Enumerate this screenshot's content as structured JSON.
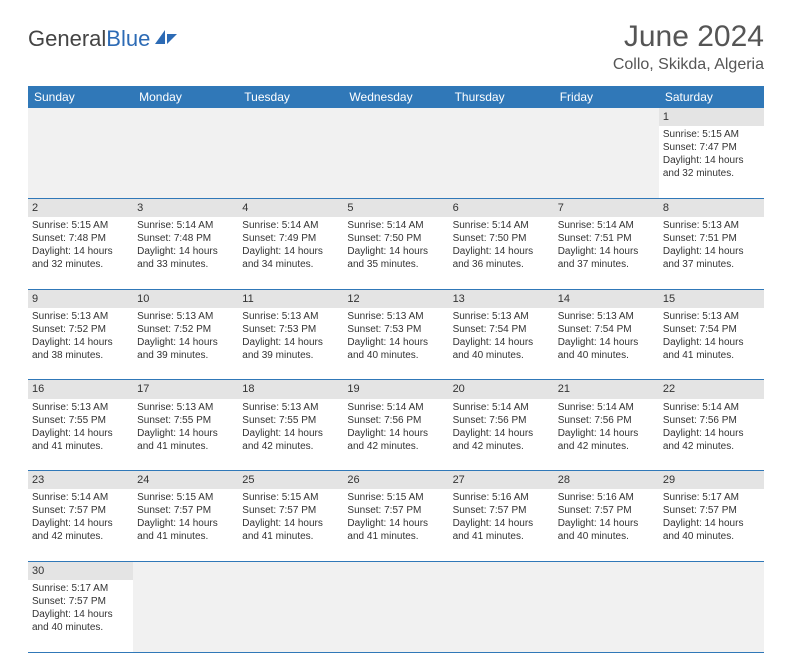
{
  "brand": {
    "part1": "General",
    "part2": "Blue"
  },
  "title": "June 2024",
  "location": "Collo, Skikda, Algeria",
  "dayHeaders": [
    "Sunday",
    "Monday",
    "Tuesday",
    "Wednesday",
    "Thursday",
    "Friday",
    "Saturday"
  ],
  "colors": {
    "header_bg": "#3078b8",
    "header_text": "#ffffff",
    "daynum_bg": "#e4e4e4",
    "empty_bg": "#f1f1f1",
    "divider": "#3078b8",
    "text": "#333333",
    "title_text": "#555555"
  },
  "layout": {
    "cols": 7,
    "rows": 6,
    "firstDayCol": 6,
    "daysInMonth": 30
  },
  "weeks": [
    [
      null,
      null,
      null,
      null,
      null,
      null,
      {
        "n": "1",
        "sr": "5:15 AM",
        "ss": "7:47 PM",
        "dl": "14 hours and 32 minutes."
      }
    ],
    [
      {
        "n": "2",
        "sr": "5:15 AM",
        "ss": "7:48 PM",
        "dl": "14 hours and 32 minutes."
      },
      {
        "n": "3",
        "sr": "5:14 AM",
        "ss": "7:48 PM",
        "dl": "14 hours and 33 minutes."
      },
      {
        "n": "4",
        "sr": "5:14 AM",
        "ss": "7:49 PM",
        "dl": "14 hours and 34 minutes."
      },
      {
        "n": "5",
        "sr": "5:14 AM",
        "ss": "7:50 PM",
        "dl": "14 hours and 35 minutes."
      },
      {
        "n": "6",
        "sr": "5:14 AM",
        "ss": "7:50 PM",
        "dl": "14 hours and 36 minutes."
      },
      {
        "n": "7",
        "sr": "5:14 AM",
        "ss": "7:51 PM",
        "dl": "14 hours and 37 minutes."
      },
      {
        "n": "8",
        "sr": "5:13 AM",
        "ss": "7:51 PM",
        "dl": "14 hours and 37 minutes."
      }
    ],
    [
      {
        "n": "9",
        "sr": "5:13 AM",
        "ss": "7:52 PM",
        "dl": "14 hours and 38 minutes."
      },
      {
        "n": "10",
        "sr": "5:13 AM",
        "ss": "7:52 PM",
        "dl": "14 hours and 39 minutes."
      },
      {
        "n": "11",
        "sr": "5:13 AM",
        "ss": "7:53 PM",
        "dl": "14 hours and 39 minutes."
      },
      {
        "n": "12",
        "sr": "5:13 AM",
        "ss": "7:53 PM",
        "dl": "14 hours and 40 minutes."
      },
      {
        "n": "13",
        "sr": "5:13 AM",
        "ss": "7:54 PM",
        "dl": "14 hours and 40 minutes."
      },
      {
        "n": "14",
        "sr": "5:13 AM",
        "ss": "7:54 PM",
        "dl": "14 hours and 40 minutes."
      },
      {
        "n": "15",
        "sr": "5:13 AM",
        "ss": "7:54 PM",
        "dl": "14 hours and 41 minutes."
      }
    ],
    [
      {
        "n": "16",
        "sr": "5:13 AM",
        "ss": "7:55 PM",
        "dl": "14 hours and 41 minutes."
      },
      {
        "n": "17",
        "sr": "5:13 AM",
        "ss": "7:55 PM",
        "dl": "14 hours and 41 minutes."
      },
      {
        "n": "18",
        "sr": "5:13 AM",
        "ss": "7:55 PM",
        "dl": "14 hours and 42 minutes."
      },
      {
        "n": "19",
        "sr": "5:14 AM",
        "ss": "7:56 PM",
        "dl": "14 hours and 42 minutes."
      },
      {
        "n": "20",
        "sr": "5:14 AM",
        "ss": "7:56 PM",
        "dl": "14 hours and 42 minutes."
      },
      {
        "n": "21",
        "sr": "5:14 AM",
        "ss": "7:56 PM",
        "dl": "14 hours and 42 minutes."
      },
      {
        "n": "22",
        "sr": "5:14 AM",
        "ss": "7:56 PM",
        "dl": "14 hours and 42 minutes."
      }
    ],
    [
      {
        "n": "23",
        "sr": "5:14 AM",
        "ss": "7:57 PM",
        "dl": "14 hours and 42 minutes."
      },
      {
        "n": "24",
        "sr": "5:15 AM",
        "ss": "7:57 PM",
        "dl": "14 hours and 41 minutes."
      },
      {
        "n": "25",
        "sr": "5:15 AM",
        "ss": "7:57 PM",
        "dl": "14 hours and 41 minutes."
      },
      {
        "n": "26",
        "sr": "5:15 AM",
        "ss": "7:57 PM",
        "dl": "14 hours and 41 minutes."
      },
      {
        "n": "27",
        "sr": "5:16 AM",
        "ss": "7:57 PM",
        "dl": "14 hours and 41 minutes."
      },
      {
        "n": "28",
        "sr": "5:16 AM",
        "ss": "7:57 PM",
        "dl": "14 hours and 40 minutes."
      },
      {
        "n": "29",
        "sr": "5:17 AM",
        "ss": "7:57 PM",
        "dl": "14 hours and 40 minutes."
      }
    ],
    [
      {
        "n": "30",
        "sr": "5:17 AM",
        "ss": "7:57 PM",
        "dl": "14 hours and 40 minutes."
      },
      null,
      null,
      null,
      null,
      null,
      null
    ]
  ],
  "labels": {
    "sunrise": "Sunrise:",
    "sunset": "Sunset:",
    "daylight": "Daylight:"
  }
}
